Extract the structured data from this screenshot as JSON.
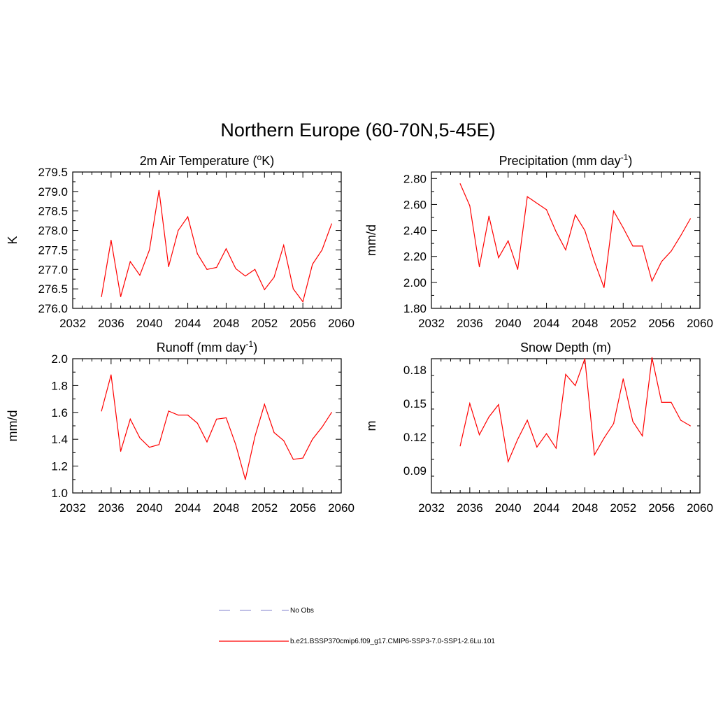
{
  "figure": {
    "title": "Northern Europe (60-70N,5-45E)"
  },
  "colors": {
    "series_line": "#ff0000",
    "no_obs_line": "#9a9ad8",
    "axis": "#000000"
  },
  "legend": {
    "items": [
      {
        "label": "No Obs",
        "style": "dashed"
      },
      {
        "label": "b.e21.BSSP370cmip6.f09_g17.CMIP6-SSP3-7.0-SSP1-2.6Lu.101",
        "style": "solid"
      }
    ]
  },
  "chart_data": [
    {
      "type": "line",
      "title_base": "2m Air Temperature (",
      "title_sup": "o",
      "title_end": "K)",
      "ylabel": "K",
      "xlim": [
        2032,
        2060
      ],
      "xticks": [
        2032,
        2036,
        2040,
        2044,
        2048,
        2052,
        2056,
        2060
      ],
      "ylim": [
        276.0,
        279.5
      ],
      "yticks": [
        276.0,
        276.5,
        277.0,
        277.5,
        278.0,
        278.5,
        279.0,
        279.5
      ],
      "yticklabels": [
        "276.0",
        "276.5",
        "277.0",
        "277.5",
        "278.0",
        "278.5",
        "279.0",
        "279.5"
      ],
      "x": [
        2035,
        2036,
        2037,
        2038,
        2039,
        2040,
        2041,
        2042,
        2043,
        2044,
        2045,
        2046,
        2047,
        2048,
        2049,
        2050,
        2051,
        2052,
        2053,
        2054,
        2055,
        2056,
        2057,
        2058,
        2059
      ],
      "series": [
        {
          "values": [
            276.3,
            277.75,
            276.3,
            277.2,
            276.85,
            277.5,
            279.03,
            277.07,
            278.0,
            278.35,
            277.4,
            277.0,
            277.05,
            277.53,
            277.02,
            276.83,
            277.0,
            276.48,
            276.8,
            277.62,
            276.5,
            276.17,
            277.13,
            277.5,
            278.17
          ]
        }
      ]
    },
    {
      "type": "line",
      "title_base": "Precipitation (mm day",
      "title_sup": "-1",
      "title_end": ")",
      "ylabel": "mm/d",
      "xlim": [
        2032,
        2060
      ],
      "xticks": [
        2032,
        2036,
        2040,
        2044,
        2048,
        2052,
        2056,
        2060
      ],
      "ylim": [
        1.8,
        2.85
      ],
      "yticks": [
        1.8,
        2.0,
        2.2,
        2.4,
        2.6,
        2.8
      ],
      "yticklabels": [
        "1.80",
        "2.00",
        "2.20",
        "2.40",
        "2.60",
        "2.80"
      ],
      "x": [
        2035,
        2036,
        2037,
        2038,
        2039,
        2040,
        2041,
        2042,
        2043,
        2044,
        2045,
        2046,
        2047,
        2048,
        2049,
        2050,
        2051,
        2052,
        2053,
        2054,
        2055,
        2056,
        2057,
        2058,
        2059
      ],
      "series": [
        {
          "values": [
            2.76,
            2.59,
            2.12,
            2.51,
            2.19,
            2.32,
            2.1,
            2.66,
            2.61,
            2.56,
            2.39,
            2.25,
            2.52,
            2.4,
            2.16,
            1.96,
            2.55,
            2.42,
            2.28,
            2.28,
            2.01,
            2.16,
            2.24,
            2.36,
            2.49
          ]
        }
      ]
    },
    {
      "type": "line",
      "title_base": "Runoff (mm day",
      "title_sup": "-1",
      "title_end": ")",
      "ylabel": "mm/d",
      "xlim": [
        2032,
        2060
      ],
      "xticks": [
        2032,
        2036,
        2040,
        2044,
        2048,
        2052,
        2056,
        2060
      ],
      "ylim": [
        1.0,
        2.0
      ],
      "yticks": [
        1.0,
        1.2,
        1.4,
        1.6,
        1.8,
        2.0
      ],
      "yticklabels": [
        "1.0",
        "1.2",
        "1.4",
        "1.6",
        "1.8",
        "2.0"
      ],
      "x": [
        2035,
        2036,
        2037,
        2038,
        2039,
        2040,
        2041,
        2042,
        2043,
        2044,
        2045,
        2046,
        2047,
        2048,
        2049,
        2050,
        2051,
        2052,
        2053,
        2054,
        2055,
        2056,
        2057,
        2058,
        2059
      ],
      "series": [
        {
          "values": [
            1.61,
            1.88,
            1.31,
            1.55,
            1.41,
            1.34,
            1.36,
            1.61,
            1.58,
            1.58,
            1.52,
            1.38,
            1.55,
            1.56,
            1.36,
            1.1,
            1.42,
            1.66,
            1.45,
            1.39,
            1.25,
            1.26,
            1.4,
            1.49,
            1.6
          ]
        }
      ]
    },
    {
      "type": "line",
      "title_base": "Snow Depth (m)",
      "title_sup": "",
      "title_end": "",
      "ylabel": "m",
      "xlim": [
        2032,
        2060
      ],
      "xticks": [
        2032,
        2036,
        2040,
        2044,
        2048,
        2052,
        2056,
        2060
      ],
      "ylim": [
        0.07,
        0.19
      ],
      "yticks": [
        0.09,
        0.12,
        0.15,
        0.18
      ],
      "yticklabels": [
        "0.09",
        "0.12",
        "0.15",
        "0.18"
      ],
      "x": [
        2035,
        2036,
        2037,
        2038,
        2039,
        2040,
        2041,
        2042,
        2043,
        2044,
        2045,
        2046,
        2047,
        2048,
        2049,
        2050,
        2051,
        2052,
        2053,
        2054,
        2055,
        2056,
        2057,
        2058,
        2059
      ],
      "series": [
        {
          "values": [
            0.112,
            0.15,
            0.122,
            0.138,
            0.149,
            0.098,
            0.118,
            0.135,
            0.111,
            0.123,
            0.11,
            0.176,
            0.166,
            0.19,
            0.104,
            0.119,
            0.132,
            0.172,
            0.134,
            0.121,
            0.191,
            0.151,
            0.151,
            0.135,
            0.13
          ]
        }
      ]
    }
  ]
}
